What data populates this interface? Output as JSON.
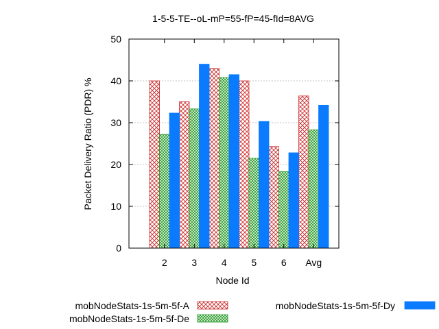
{
  "chart_data": {
    "type": "bar",
    "title": "1-5-5-TE--oL-mP=55-fP=45-fId=8AVG",
    "xlabel": "Node Id",
    "ylabel": "Packet Delivery Ratio (PDR) %",
    "ylim": [
      0,
      50
    ],
    "yticks": [
      0,
      10,
      20,
      30,
      40,
      50
    ],
    "grid": true,
    "legend_position": "bottom",
    "categories": [
      "2",
      "3",
      "4",
      "5",
      "6",
      "Avg"
    ],
    "series": [
      {
        "name": "mobNodeStats-1s-5m-5f-A",
        "values": [
          40.0,
          35.0,
          43.0,
          40.0,
          24.3,
          36.4
        ],
        "color": "#cc2a2a",
        "pattern": "crosshatch"
      },
      {
        "name": "mobNodeStats-1s-5m-5f-De",
        "values": [
          27.2,
          33.3,
          40.8,
          21.5,
          18.3,
          28.3
        ],
        "color": "#2e9e2e",
        "pattern": "crosshatch"
      },
      {
        "name": "mobNodeStats-1s-5m-5f-Dy",
        "values": [
          32.3,
          44.0,
          41.5,
          30.3,
          22.8,
          34.2
        ],
        "color": "#0a7aff",
        "pattern": "solid"
      }
    ]
  }
}
